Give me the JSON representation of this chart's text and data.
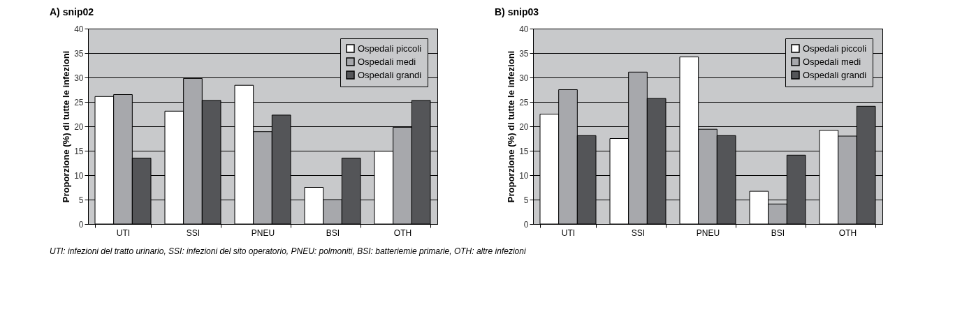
{
  "chart_data": [
    {
      "type": "bar",
      "title": "A) snip02",
      "ylabel": "Proporzione (%) di tutte le infezioni",
      "categories": [
        "UTI",
        "SSI",
        "PNEU",
        "BSI",
        "OTH"
      ],
      "series": [
        {
          "name": "Ospedali piccoli",
          "color": "#ffffff",
          "values": [
            26.1,
            23.1,
            28.4,
            7.5,
            14.9
          ]
        },
        {
          "name": "Ospedali medi",
          "color": "#a7a8ac",
          "values": [
            26.5,
            29.8,
            18.9,
            5.0,
            19.8
          ]
        },
        {
          "name": "Ospedali grandi",
          "color": "#545558",
          "values": [
            13.5,
            25.3,
            22.3,
            13.5,
            25.3
          ]
        }
      ],
      "ylim": [
        0,
        40
      ],
      "yticks": [
        0,
        5,
        10,
        15,
        20,
        25,
        30,
        35,
        40
      ],
      "grid": "y",
      "legend": "top right",
      "annotations": [
        "UTI: infezioni del tratto urinario, SSI: infezioni del sito operatorio, PNEU: polmoniti, BSI: batteriemie primarie, OTH: altre infezioni"
      ]
    },
    {
      "type": "bar",
      "title": "B) snip03",
      "ylabel": "Proporzione (%) di tutte le infezioni",
      "categories": [
        "UTI",
        "SSI",
        "PNEU",
        "BSI",
        "OTH"
      ],
      "series": [
        {
          "name": "Ospedali piccoli",
          "color": "#ffffff",
          "values": [
            22.5,
            17.5,
            34.2,
            6.7,
            19.2
          ]
        },
        {
          "name": "Ospedali medi",
          "color": "#a7a8ac",
          "values": [
            27.5,
            31.1,
            19.4,
            4.1,
            18.0
          ]
        },
        {
          "name": "Ospedali grandi",
          "color": "#545558",
          "values": [
            18.1,
            25.7,
            18.1,
            14.1,
            24.1
          ]
        }
      ],
      "ylim": [
        0,
        40
      ],
      "yticks": [
        0,
        5,
        10,
        15,
        20,
        25,
        30,
        35,
        40
      ],
      "grid": "y",
      "legend": "top right"
    }
  ]
}
